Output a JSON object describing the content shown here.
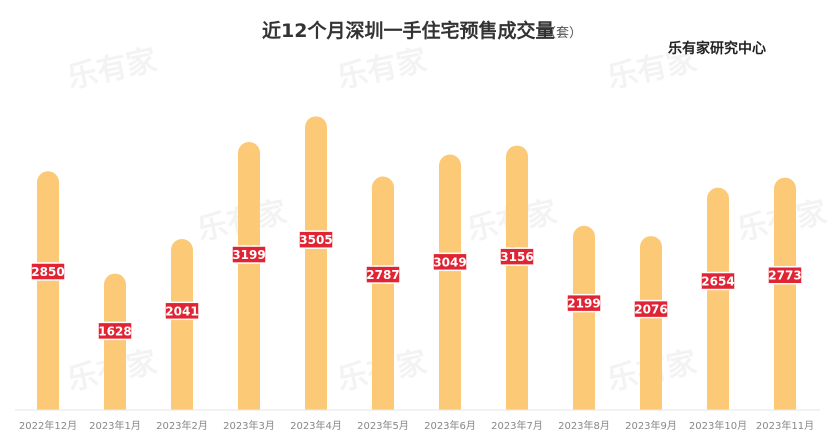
{
  "chart_data": {
    "type": "bar",
    "title": "近12个月深圳一手住宅预售成交量",
    "unit_label": "（套）",
    "source": "乐有家研究中心",
    "watermark": "乐有家",
    "categories": [
      "2022年12月",
      "2023年1月",
      "2023年2月",
      "2023年3月",
      "2023年4月",
      "2023年5月",
      "2023年6月",
      "2023年7月",
      "2023年8月",
      "2023年9月",
      "2023年10月",
      "2023年11月"
    ],
    "values": [
      2850,
      1628,
      2041,
      3199,
      3505,
      2787,
      3049,
      3156,
      2199,
      2076,
      2654,
      2773
    ],
    "value_labels": [
      "2850",
      "1628",
      "2041",
      "3199",
      "3505",
      "2787",
      "3049",
      "3156",
      "2199",
      "2076",
      "2654",
      "2773"
    ],
    "ylim": [
      0,
      3700
    ],
    "grid": false,
    "colors": {
      "bar": "#FCC977",
      "label_bg": "#E02433",
      "label_text": "#FFFFFF"
    }
  }
}
